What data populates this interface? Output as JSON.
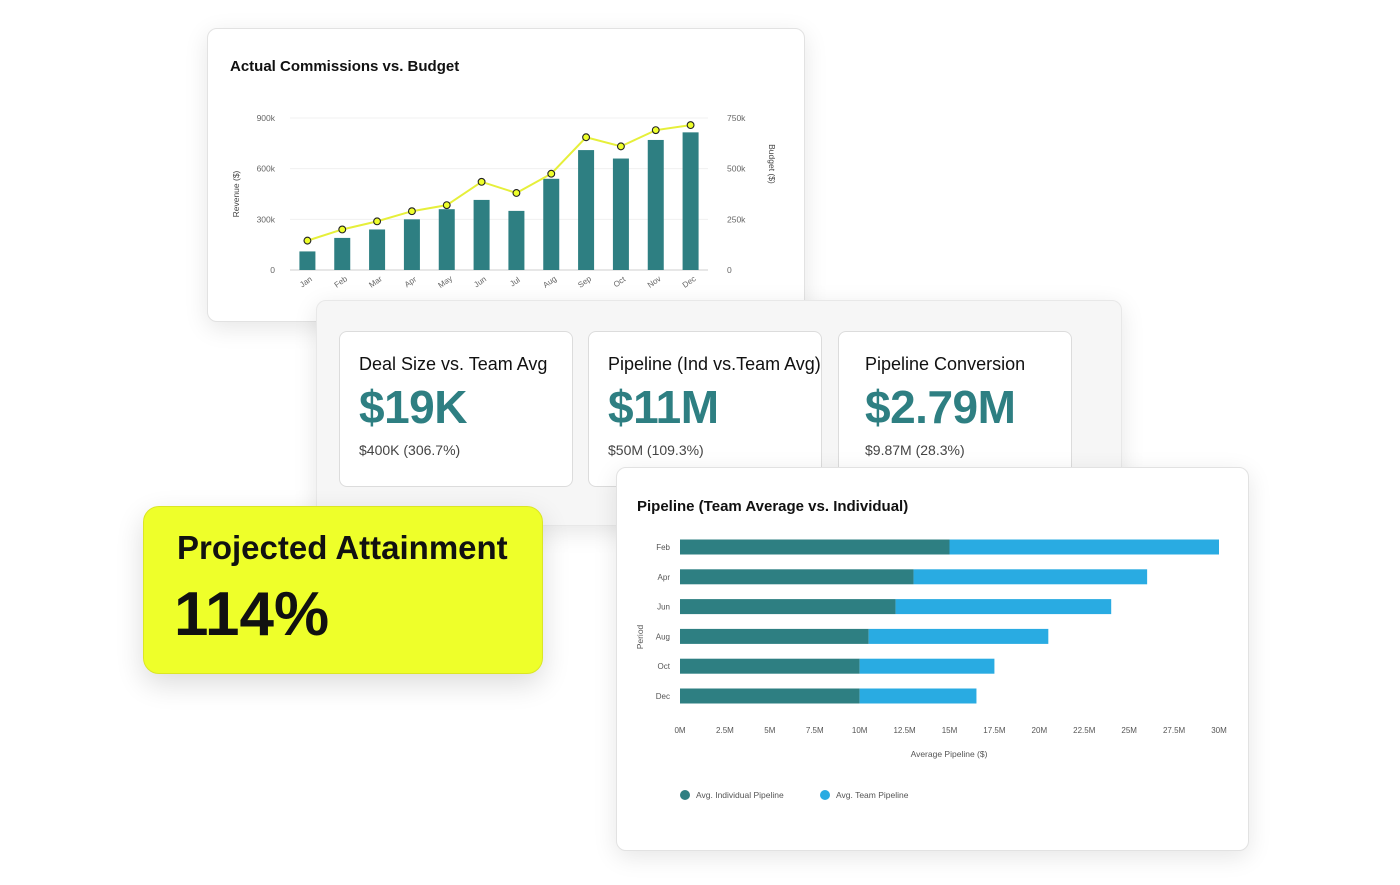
{
  "combo_card": {
    "title": "Actual Commissions vs. Budget"
  },
  "kpis": [
    {
      "label": "Deal Size vs. Team Avg",
      "value": "$19K",
      "sub": "$400K (306.7%)"
    },
    {
      "label": "Pipeline (Ind vs.Team Avg)",
      "value": "$11M",
      "sub": "$50M (109.3%)"
    },
    {
      "label": "Pipeline Conversion",
      "value": "$2.79M",
      "sub": "$9.87M (28.3%)"
    }
  ],
  "attainment": {
    "title": "Projected Attainment",
    "value": "114%"
  },
  "bar_card": {
    "title": "Pipeline (Team Average vs. Individual)"
  },
  "colors": {
    "teal": "#2e7f82",
    "blue": "#29abe2",
    "yellow": "#eeff2a",
    "line": "#e6ef3a"
  },
  "chart_data": [
    {
      "type": "bar",
      "title": "Actual Commissions vs. Budget",
      "categories": [
        "Jan",
        "Feb",
        "Mar",
        "Apr",
        "May",
        "Jun",
        "Jul",
        "Aug",
        "Sep",
        "Oct",
        "Nov",
        "Dec"
      ],
      "series": [
        {
          "name": "Revenue",
          "type": "bar",
          "axis": "left",
          "values": [
            110000,
            190000,
            240000,
            300000,
            360000,
            415000,
            350000,
            540000,
            710000,
            660000,
            770000,
            815000
          ]
        },
        {
          "name": "Budget",
          "type": "line",
          "axis": "right",
          "values": [
            145000,
            200000,
            240000,
            290000,
            320000,
            435000,
            380000,
            475000,
            655000,
            610000,
            690000,
            715000
          ]
        }
      ],
      "ylabel": "Revenue ($)",
      "ylabel_right": "Budget ($)",
      "ylim": [
        0,
        900000
      ],
      "ylim_right": [
        0,
        750000
      ],
      "yticks": [
        {
          "v": 0,
          "label": "0"
        },
        {
          "v": 300000,
          "label": "300k"
        },
        {
          "v": 600000,
          "label": "600k"
        },
        {
          "v": 900000,
          "label": "900k"
        }
      ],
      "yticks_right": [
        {
          "v": 0,
          "label": "0"
        },
        {
          "v": 250000,
          "label": "250k"
        },
        {
          "v": 500000,
          "label": "500k"
        },
        {
          "v": 750000,
          "label": "750k"
        }
      ],
      "grid": true
    },
    {
      "type": "bar",
      "orientation": "horizontal",
      "stacked": true,
      "title": "Pipeline (Team Average vs. Individual)",
      "categories": [
        "Feb",
        "Apr",
        "Jun",
        "Aug",
        "Oct",
        "Dec"
      ],
      "series": [
        {
          "name": "Avg. Individual Pipeline",
          "values": [
            15.0,
            13.0,
            12.0,
            10.5,
            10.0,
            10.0
          ]
        },
        {
          "name": "Avg. Team Pipeline",
          "values": [
            15.0,
            13.0,
            12.0,
            10.0,
            7.5,
            6.5
          ]
        }
      ],
      "xlabel": "Average Pipeline ($)",
      "ylabel": "Period",
      "xlim": [
        0,
        30
      ],
      "xticks": [
        {
          "v": 0,
          "label": "0M"
        },
        {
          "v": 2.5,
          "label": "2.5M"
        },
        {
          "v": 5,
          "label": "5M"
        },
        {
          "v": 7.5,
          "label": "7.5M"
        },
        {
          "v": 10,
          "label": "10M"
        },
        {
          "v": 12.5,
          "label": "12.5M"
        },
        {
          "v": 15,
          "label": "15M"
        },
        {
          "v": 17.5,
          "label": "17.5M"
        },
        {
          "v": 20,
          "label": "20M"
        },
        {
          "v": 22.5,
          "label": "22.5M"
        },
        {
          "v": 25,
          "label": "25M"
        },
        {
          "v": 27.5,
          "label": "27.5M"
        },
        {
          "v": 30,
          "label": "30M"
        }
      ],
      "legend": "bottom-left"
    }
  ]
}
